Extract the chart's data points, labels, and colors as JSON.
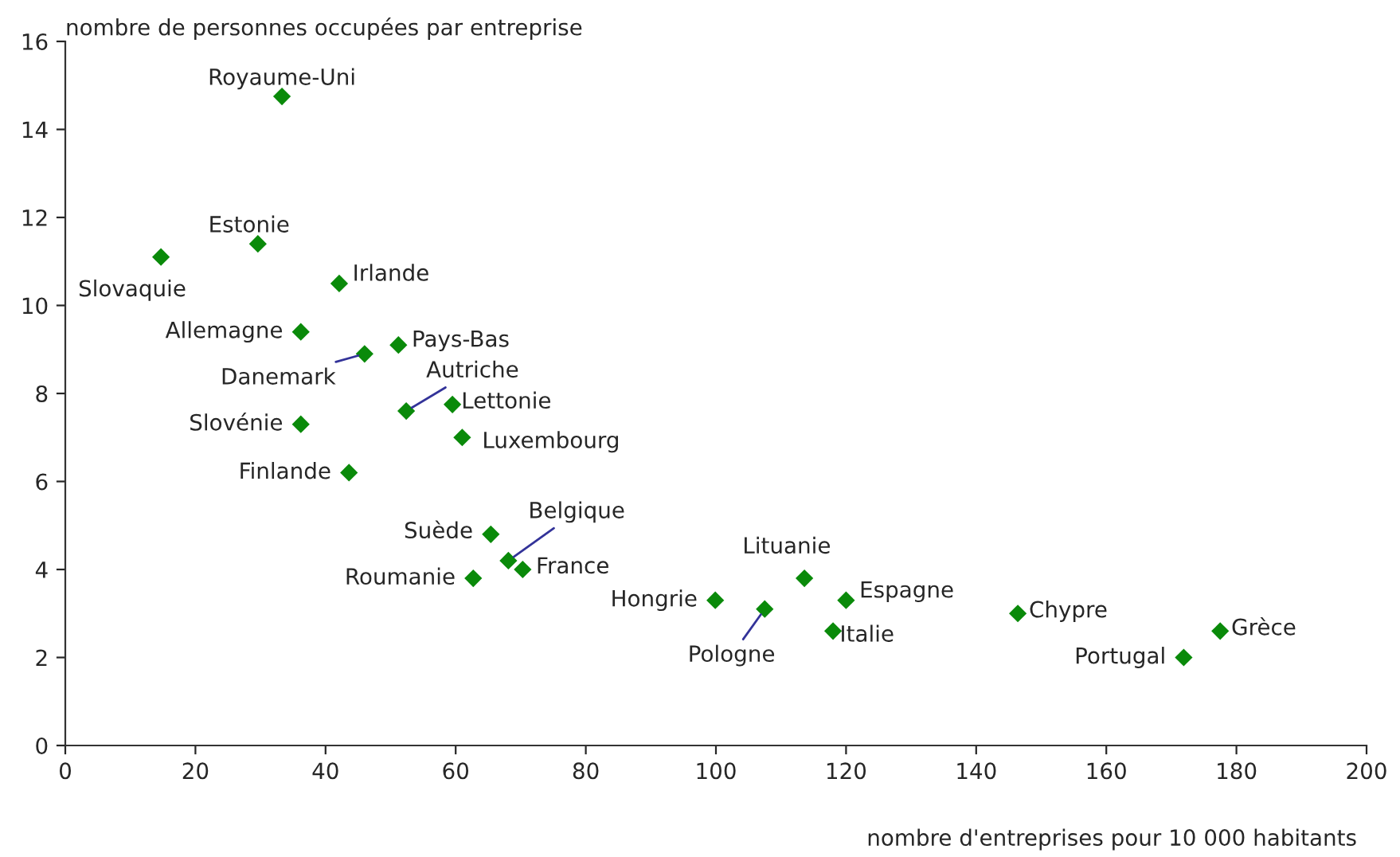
{
  "chart_data": {
    "type": "scatter",
    "xlabel": "nombre d'entreprises pour 10 000 habitants",
    "ylabel": "nombre de personnes occupées par entreprise",
    "x": [
      33.3,
      29.6,
      14.7,
      42.1,
      36.2,
      46.0,
      51.2,
      52.4,
      59.5,
      61.0,
      36.2,
      43.6,
      65.4,
      68.1,
      70.3,
      62.7,
      99.9,
      107.5,
      113.6,
      120.0,
      118.0,
      146.4,
      177.5,
      171.9
    ],
    "series": [
      {
        "color": "#0a8a0a",
        "values": [
          14.75,
          11.4,
          11.1,
          10.5,
          9.4,
          8.9,
          9.1,
          7.6,
          7.75,
          7.0,
          7.3,
          6.2,
          4.8,
          4.2,
          4.0,
          3.8,
          3.3,
          3.1,
          3.8,
          3.3,
          2.6,
          3.0,
          2.6,
          2.0
        ]
      }
    ],
    "annotations": [
      {
        "text": "Royaume-Uni",
        "x": 33.3,
        "y": 14.75
      },
      {
        "text": "Estonie",
        "x": 29.6,
        "y": 11.4
      },
      {
        "text": "Slovaquie",
        "x": 14.7,
        "y": 11.1
      },
      {
        "text": "Irlande",
        "x": 42.1,
        "y": 10.5
      },
      {
        "text": "Allemagne",
        "x": 36.2,
        "y": 9.4
      },
      {
        "text": "Danemark",
        "x": 46.0,
        "y": 8.9
      },
      {
        "text": "Pays-Bas",
        "x": 51.2,
        "y": 9.1
      },
      {
        "text": "Autriche",
        "x": 52.4,
        "y": 7.6
      },
      {
        "text": "Lettonie",
        "x": 59.5,
        "y": 7.75
      },
      {
        "text": "Luxembourg",
        "x": 61.0,
        "y": 7.0
      },
      {
        "text": "Slovénie",
        "x": 36.2,
        "y": 7.3
      },
      {
        "text": "Finlande",
        "x": 43.6,
        "y": 6.2
      },
      {
        "text": "Suède",
        "x": 65.4,
        "y": 4.8
      },
      {
        "text": "Belgique",
        "x": 68.1,
        "y": 4.2
      },
      {
        "text": "France",
        "x": 70.3,
        "y": 4.0
      },
      {
        "text": "Roumanie",
        "x": 62.7,
        "y": 3.8
      },
      {
        "text": "Hongrie",
        "x": 99.9,
        "y": 3.3
      },
      {
        "text": "Pologne",
        "x": 107.5,
        "y": 3.1
      },
      {
        "text": "Lituanie",
        "x": 113.6,
        "y": 3.8
      },
      {
        "text": "Espagne",
        "x": 120.0,
        "y": 3.3
      },
      {
        "text": "Italie",
        "x": 118.0,
        "y": 2.6
      },
      {
        "text": "Chypre",
        "x": 146.4,
        "y": 3.0
      },
      {
        "text": "Grèce",
        "x": 177.5,
        "y": 2.6
      },
      {
        "text": "Portugal",
        "x": 171.9,
        "y": 2.0
      }
    ],
    "xlim": [
      0,
      200
    ],
    "xticks": [
      0,
      20,
      40,
      60,
      80,
      100,
      120,
      140,
      160,
      180,
      200
    ],
    "ylim": [
      0,
      16
    ],
    "yticks": [
      0,
      2,
      4,
      6,
      8,
      10,
      12,
      14,
      16
    ],
    "marker": "diamond",
    "grid": false,
    "legend": false
  }
}
